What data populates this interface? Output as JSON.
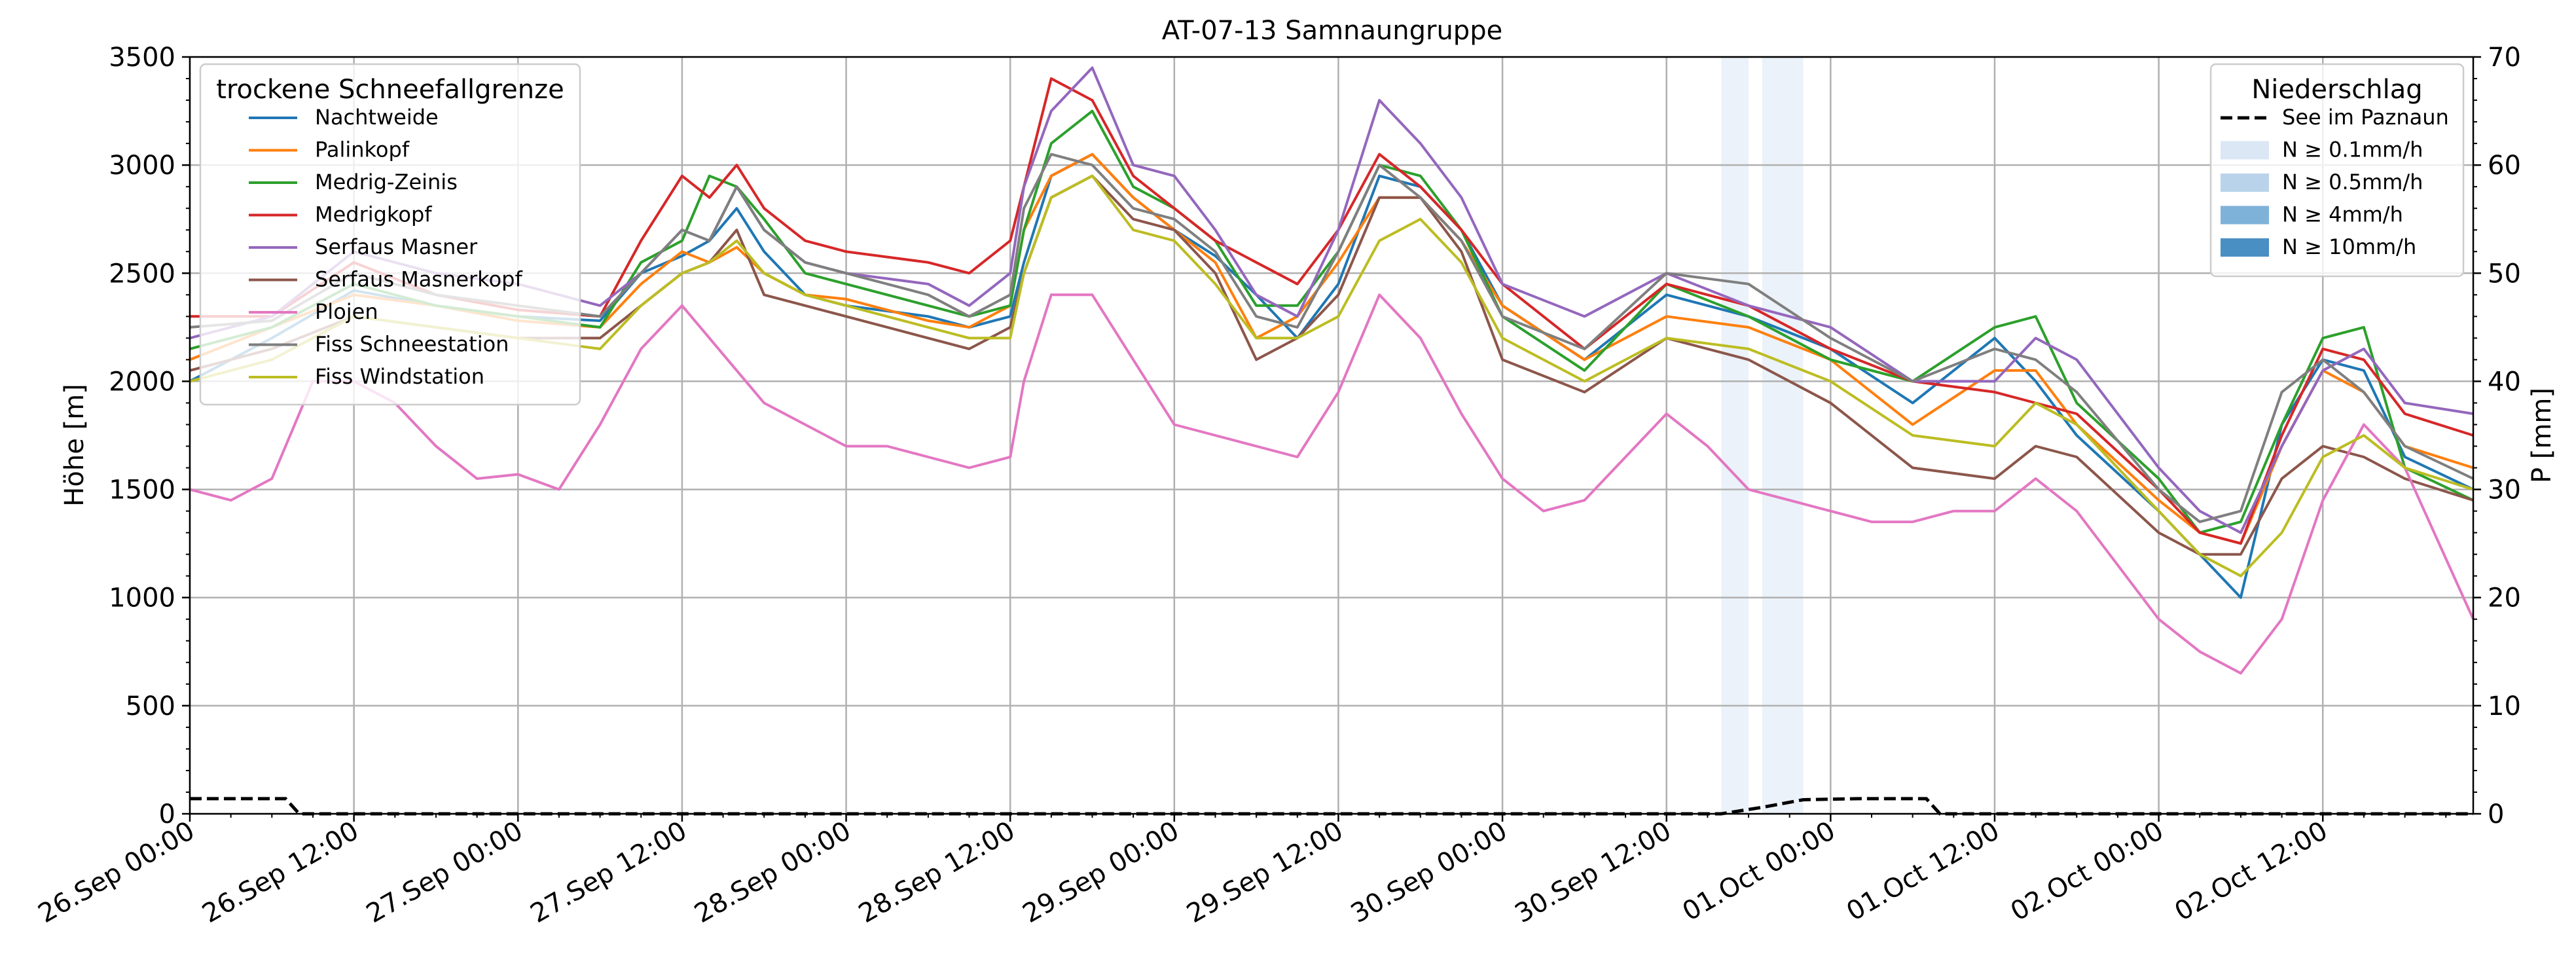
{
  "chart_data": {
    "type": "line",
    "title": "AT-07-13 Samnaungruppe",
    "ylabel": "Höhe [m]",
    "y2label": "P [mm]",
    "ylim": [
      0,
      3500
    ],
    "y2lim": [
      0,
      70
    ],
    "yticks": [
      0,
      500,
      1000,
      1500,
      2000,
      2500,
      3000,
      3500
    ],
    "y2ticks": [
      0,
      10,
      20,
      30,
      40,
      50,
      60,
      70
    ],
    "x_unit": "hours since 26.Sep 00:00",
    "xlim": [
      0,
      167
    ],
    "xtick_labels": [
      "26.Sep 00:00",
      "26.Sep 12:00",
      "27.Sep 00:00",
      "27.Sep 12:00",
      "28.Sep 00:00",
      "28.Sep 12:00",
      "29.Sep 00:00",
      "29.Sep 12:00",
      "30.Sep 00:00",
      "30.Sep 12:00",
      "01.Oct 00:00",
      "01.Oct 12:00",
      "02.Oct 00:00",
      "02.Oct 12:00"
    ],
    "xtick_hours": [
      0,
      12,
      24,
      36,
      48,
      60,
      72,
      84,
      96,
      108,
      120,
      132,
      144,
      156
    ],
    "legend1_title": "trockene Schneefallgrenze",
    "legend2_title": "Niederschlag",
    "series": [
      {
        "name": "Nachtweide",
        "color": "#1f77b4",
        "x": [
          0,
          6,
          12,
          18,
          24,
          30,
          33,
          36,
          38,
          40,
          42,
          45,
          48,
          54,
          57,
          60,
          61,
          63,
          66,
          69,
          72,
          75,
          78,
          81,
          84,
          87,
          90,
          93,
          96,
          102,
          108,
          114,
          120,
          126,
          132,
          135,
          138,
          144,
          147,
          150,
          153,
          156,
          159,
          162,
          167
        ],
        "y": [
          2000,
          2200,
          2420,
          2350,
          2300,
          2280,
          2500,
          2580,
          2650,
          2800,
          2600,
          2400,
          2350,
          2300,
          2250,
          2300,
          2550,
          2950,
          3050,
          2850,
          2700,
          2580,
          2400,
          2200,
          2450,
          2950,
          2900,
          2700,
          2350,
          2100,
          2400,
          2300,
          2150,
          1900,
          2200,
          2000,
          1750,
          1400,
          1200,
          1000,
          1800,
          2100,
          2050,
          1650,
          1500
        ]
      },
      {
        "name": "Palinkopf",
        "color": "#ff7f0e",
        "x": [
          0,
          6,
          12,
          18,
          24,
          30,
          33,
          36,
          38,
          40,
          42,
          45,
          48,
          54,
          57,
          60,
          61,
          63,
          66,
          69,
          72,
          75,
          78,
          81,
          84,
          87,
          90,
          93,
          96,
          102,
          108,
          114,
          120,
          126,
          132,
          135,
          138,
          144,
          147,
          150,
          153,
          156,
          159,
          162,
          167
        ],
        "y": [
          2100,
          2250,
          2400,
          2350,
          2280,
          2250,
          2450,
          2600,
          2550,
          2620,
          2500,
          2400,
          2380,
          2280,
          2250,
          2350,
          2700,
          2950,
          3050,
          2850,
          2700,
          2550,
          2200,
          2300,
          2550,
          2850,
          2850,
          2650,
          2350,
          2100,
          2300,
          2250,
          2100,
          1800,
          2050,
          2050,
          1800,
          1450,
          1300,
          1250,
          1700,
          2050,
          1950,
          1700,
          1600
        ]
      },
      {
        "name": "Medrig-Zeinis",
        "color": "#2ca02c",
        "x": [
          0,
          6,
          12,
          18,
          24,
          30,
          33,
          36,
          38,
          40,
          42,
          45,
          48,
          54,
          57,
          60,
          61,
          63,
          66,
          69,
          72,
          75,
          78,
          81,
          84,
          87,
          90,
          93,
          96,
          102,
          108,
          114,
          120,
          126,
          132,
          135,
          138,
          144,
          147,
          150,
          153,
          156,
          159,
          162,
          167
        ],
        "y": [
          2150,
          2250,
          2450,
          2350,
          2300,
          2250,
          2550,
          2650,
          2950,
          2900,
          2750,
          2500,
          2450,
          2350,
          2300,
          2350,
          2700,
          3100,
          3250,
          2900,
          2800,
          2650,
          2350,
          2350,
          2600,
          3000,
          2950,
          2700,
          2300,
          2050,
          2450,
          2300,
          2100,
          2000,
          2250,
          2300,
          1900,
          1550,
          1300,
          1350,
          1800,
          2200,
          2250,
          1600,
          1450
        ]
      },
      {
        "name": "Medrigkopf",
        "color": "#d62728",
        "x": [
          0,
          6,
          12,
          18,
          24,
          30,
          33,
          36,
          38,
          40,
          42,
          45,
          48,
          54,
          57,
          60,
          61,
          63,
          66,
          69,
          72,
          75,
          78,
          81,
          84,
          87,
          90,
          93,
          96,
          102,
          108,
          114,
          120,
          126,
          132,
          135,
          138,
          144,
          147,
          150,
          153,
          156,
          159,
          162,
          167
        ],
        "y": [
          2300,
          2300,
          2550,
          2400,
          2330,
          2300,
          2650,
          2950,
          2850,
          3000,
          2800,
          2650,
          2600,
          2550,
          2500,
          2650,
          2900,
          3400,
          3300,
          2950,
          2800,
          2650,
          2550,
          2450,
          2700,
          3050,
          2900,
          2700,
          2450,
          2150,
          2450,
          2350,
          2150,
          2000,
          1950,
          1900,
          1850,
          1500,
          1300,
          1250,
          1750,
          2150,
          2100,
          1850,
          1750
        ]
      },
      {
        "name": "Serfaus Masner",
        "color": "#9467bd",
        "x": [
          0,
          6,
          12,
          18,
          24,
          30,
          33,
          36,
          38,
          40,
          42,
          45,
          48,
          54,
          57,
          60,
          61,
          63,
          66,
          69,
          72,
          75,
          78,
          81,
          84,
          87,
          90,
          93,
          96,
          102,
          108,
          114,
          120,
          126,
          132,
          135,
          138,
          144,
          147,
          150,
          153,
          156,
          159,
          162,
          167
        ],
        "y": [
          2200,
          2300,
          2600,
          2500,
          2450,
          2350,
          2500,
          2700,
          2650,
          2900,
          2700,
          2550,
          2500,
          2450,
          2350,
          2500,
          2900,
          3250,
          3450,
          3000,
          2950,
          2700,
          2400,
          2300,
          2700,
          3300,
          3100,
          2850,
          2450,
          2300,
          2500,
          2350,
          2250,
          2000,
          2000,
          2200,
          2100,
          1600,
          1400,
          1300,
          1700,
          2050,
          2150,
          1900,
          1850
        ]
      },
      {
        "name": "Serfaus Masnerkopf",
        "color": "#8c564b",
        "x": [
          0,
          6,
          12,
          18,
          24,
          30,
          33,
          36,
          38,
          40,
          42,
          45,
          48,
          54,
          57,
          60,
          61,
          63,
          66,
          69,
          72,
          75,
          78,
          81,
          84,
          87,
          90,
          93,
          96,
          102,
          108,
          114,
          120,
          126,
          132,
          135,
          138,
          144,
          147,
          150,
          153,
          156,
          159,
          162,
          167
        ],
        "y": [
          2050,
          2150,
          2300,
          2250,
          2200,
          2200,
          2350,
          2500,
          2550,
          2700,
          2400,
          2350,
          2300,
          2200,
          2150,
          2250,
          2500,
          2850,
          2950,
          2750,
          2700,
          2500,
          2100,
          2200,
          2400,
          2850,
          2850,
          2600,
          2100,
          1950,
          2200,
          2100,
          1900,
          1600,
          1550,
          1700,
          1650,
          1300,
          1200,
          1200,
          1550,
          1700,
          1650,
          1550,
          1450
        ]
      },
      {
        "name": "Plojen",
        "color": "#e377c2",
        "x": [
          0,
          3,
          6,
          9,
          12,
          15,
          18,
          21,
          24,
          27,
          30,
          33,
          36,
          38,
          40,
          42,
          45,
          48,
          51,
          54,
          57,
          60,
          61,
          63,
          66,
          69,
          72,
          75,
          78,
          81,
          84,
          87,
          90,
          93,
          96,
          99,
          102,
          105,
          108,
          111,
          114,
          117,
          120,
          123,
          126,
          129,
          132,
          135,
          138,
          141,
          144,
          147,
          150,
          153,
          156,
          159,
          162,
          167
        ],
        "y": [
          1500,
          1450,
          1550,
          2000,
          2000,
          1900,
          1700,
          1550,
          1570,
          1500,
          1800,
          2150,
          2350,
          2200,
          2050,
          1900,
          1800,
          1700,
          1700,
          1650,
          1600,
          1650,
          2000,
          2400,
          2400,
          2100,
          1800,
          1750,
          1700,
          1650,
          1950,
          2400,
          2200,
          1850,
          1550,
          1400,
          1450,
          1650,
          1850,
          1700,
          1500,
          1450,
          1400,
          1350,
          1350,
          1400,
          1400,
          1550,
          1400,
          1150,
          900,
          750,
          650,
          900,
          1450,
          1800,
          1600,
          900
        ]
      },
      {
        "name": "Fiss Schneestation",
        "color": "#7f7f7f",
        "x": [
          0,
          6,
          12,
          18,
          24,
          30,
          33,
          36,
          38,
          40,
          42,
          45,
          48,
          54,
          57,
          60,
          61,
          63,
          66,
          69,
          72,
          75,
          78,
          81,
          84,
          87,
          90,
          93,
          96,
          102,
          108,
          114,
          120,
          126,
          132,
          135,
          138,
          144,
          147,
          150,
          153,
          156,
          159,
          162,
          167
        ],
        "y": [
          2250,
          2280,
          2500,
          2400,
          2350,
          2300,
          2500,
          2700,
          2650,
          2900,
          2700,
          2550,
          2500,
          2400,
          2300,
          2400,
          2800,
          3050,
          3000,
          2800,
          2750,
          2600,
          2300,
          2250,
          2600,
          3000,
          2850,
          2650,
          2300,
          2150,
          2500,
          2450,
          2200,
          2000,
          2150,
          2100,
          1950,
          1500,
          1350,
          1400,
          1950,
          2100,
          1950,
          1700,
          1550
        ]
      },
      {
        "name": "Fiss Windstation",
        "color": "#bcbd22",
        "x": [
          0,
          6,
          12,
          18,
          24,
          30,
          33,
          36,
          38,
          40,
          42,
          45,
          48,
          54,
          57,
          60,
          61,
          63,
          66,
          69,
          72,
          75,
          78,
          81,
          84,
          87,
          90,
          93,
          96,
          102,
          108,
          114,
          120,
          126,
          132,
          135,
          138,
          144,
          147,
          150,
          153,
          156,
          159,
          162,
          167
        ],
        "y": [
          2000,
          2100,
          2300,
          2250,
          2200,
          2150,
          2350,
          2500,
          2550,
          2650,
          2500,
          2400,
          2350,
          2250,
          2200,
          2200,
          2500,
          2850,
          2950,
          2700,
          2650,
          2450,
          2200,
          2200,
          2300,
          2650,
          2750,
          2550,
          2200,
          2000,
          2200,
          2150,
          2000,
          1750,
          1700,
          1900,
          1800,
          1400,
          1200,
          1100,
          1300,
          1650,
          1750,
          1600,
          1500
        ]
      }
    ],
    "precip": {
      "name": "See im Paznaun",
      "color": "#000000",
      "style": "dashed",
      "x": [
        0,
        7,
        8,
        24,
        36,
        48,
        60,
        72,
        84,
        96,
        108,
        112,
        115,
        118,
        122,
        127,
        128,
        144,
        156,
        167
      ],
      "y": [
        1.4,
        1.4,
        0,
        0,
        0,
        0,
        0,
        0,
        0,
        0,
        0,
        0,
        0.6,
        1.3,
        1.4,
        1.4,
        0,
        0,
        0,
        0
      ]
    },
    "precip_intensity_bands": [
      {
        "start": 112,
        "end": 114,
        "level": "N ≥ 0.1mm/h"
      },
      {
        "start": 115,
        "end": 118,
        "level": "N ≥ 0.1mm/h"
      }
    ],
    "precip_legend": [
      {
        "label": "See im Paznaun",
        "kind": "line",
        "color": "#000000"
      },
      {
        "label": "N ≥ 0.1mm/h",
        "kind": "patch",
        "color": "#dbe7f4"
      },
      {
        "label": "N ≥ 0.5mm/h",
        "kind": "patch",
        "color": "#b9d3ea"
      },
      {
        "label": "N ≥ 4mm/h",
        "kind": "patch",
        "color": "#7fb2d8"
      },
      {
        "label": "N ≥ 10mm/h",
        "kind": "patch",
        "color": "#4a8fc3"
      }
    ]
  }
}
